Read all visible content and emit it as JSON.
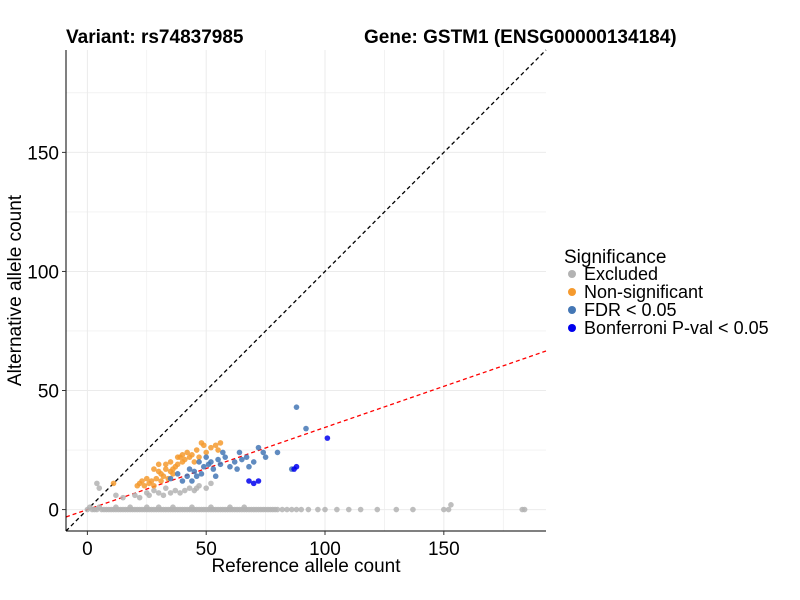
{
  "chart_data": {
    "type": "scatter",
    "title_left": "Variant: rs74837985",
    "title_right": "Gene: GSTM1 (ENSG00000134184)",
    "xlabel": "Reference allele count",
    "ylabel": "Alternative allele count",
    "xlim": [
      -9,
      193
    ],
    "ylim": [
      -9,
      193
    ],
    "x_ticks": [
      0,
      50,
      100,
      150
    ],
    "y_ticks": [
      0,
      50,
      100,
      150
    ],
    "grid": true,
    "legend_position": "right",
    "legend_title": "Significance",
    "reference_lines": [
      {
        "name": "y = x",
        "slope": 1,
        "intercept": 0,
        "color": "#000000",
        "dash": "dashed"
      },
      {
        "name": "fitted",
        "slope": 0.345,
        "intercept": 0,
        "color": "#ff0000",
        "dash": "dashed"
      }
    ],
    "series": [
      {
        "name": "Excluded",
        "color": "#b3b3b3",
        "points": [
          [
            0,
            0
          ],
          [
            1,
            1
          ],
          [
            2,
            0
          ],
          [
            3,
            0
          ],
          [
            4,
            0
          ],
          [
            5,
            1
          ],
          [
            6,
            0
          ],
          [
            7,
            0
          ],
          [
            8,
            0
          ],
          [
            9,
            0
          ],
          [
            10,
            0
          ],
          [
            11,
            0
          ],
          [
            12,
            0
          ],
          [
            13,
            0
          ],
          [
            14,
            0
          ],
          [
            15,
            0
          ],
          [
            16,
            0
          ],
          [
            17,
            0
          ],
          [
            18,
            0
          ],
          [
            19,
            0
          ],
          [
            20,
            0
          ],
          [
            21,
            0
          ],
          [
            22,
            0
          ],
          [
            23,
            0
          ],
          [
            24,
            0
          ],
          [
            25,
            0
          ],
          [
            26,
            0
          ],
          [
            27,
            0
          ],
          [
            28,
            0
          ],
          [
            29,
            0
          ],
          [
            30,
            0
          ],
          [
            31,
            0
          ],
          [
            32,
            0
          ],
          [
            33,
            0
          ],
          [
            34,
            0
          ],
          [
            35,
            0
          ],
          [
            36,
            0
          ],
          [
            37,
            0
          ],
          [
            38,
            0
          ],
          [
            39,
            0
          ],
          [
            40,
            0
          ],
          [
            41,
            0
          ],
          [
            42,
            0
          ],
          [
            43,
            0
          ],
          [
            44,
            0
          ],
          [
            45,
            0
          ],
          [
            46,
            0
          ],
          [
            47,
            0
          ],
          [
            48,
            0
          ],
          [
            49,
            0
          ],
          [
            50,
            0
          ],
          [
            51,
            0
          ],
          [
            52,
            0
          ],
          [
            53,
            0
          ],
          [
            54,
            0
          ],
          [
            55,
            0
          ],
          [
            56,
            0
          ],
          [
            57,
            0
          ],
          [
            58,
            0
          ],
          [
            59,
            0
          ],
          [
            60,
            0
          ],
          [
            61,
            0
          ],
          [
            62,
            0
          ],
          [
            63,
            0
          ],
          [
            64,
            0
          ],
          [
            65,
            0
          ],
          [
            66,
            0
          ],
          [
            67,
            0
          ],
          [
            68,
            0
          ],
          [
            69,
            0
          ],
          [
            70,
            0
          ],
          [
            71,
            0
          ],
          [
            72,
            0
          ],
          [
            73,
            0
          ],
          [
            74,
            0
          ],
          [
            75,
            0
          ],
          [
            76,
            0
          ],
          [
            77,
            0
          ],
          [
            78,
            0
          ],
          [
            79,
            0
          ],
          [
            80,
            0
          ],
          [
            82,
            0
          ],
          [
            84,
            0
          ],
          [
            86,
            0
          ],
          [
            88,
            0
          ],
          [
            90,
            0
          ],
          [
            93,
            0
          ],
          [
            97,
            0
          ],
          [
            100,
            0
          ],
          [
            105,
            0
          ],
          [
            110,
            0
          ],
          [
            115,
            0
          ],
          [
            122,
            0
          ],
          [
            130,
            0
          ],
          [
            137,
            0
          ],
          [
            150,
            0
          ],
          [
            152,
            0
          ],
          [
            153,
            2
          ],
          [
            183,
            0
          ],
          [
            184,
            0
          ],
          [
            12,
            1
          ],
          [
            18,
            1
          ],
          [
            25,
            1
          ],
          [
            30,
            1
          ],
          [
            36,
            1
          ],
          [
            44,
            1
          ],
          [
            52,
            1
          ],
          [
            60,
            1
          ],
          [
            66,
            1
          ],
          [
            4,
            11
          ],
          [
            5,
            9
          ],
          [
            12,
            6
          ],
          [
            15,
            5
          ],
          [
            20,
            6
          ],
          [
            22,
            5
          ],
          [
            25,
            7
          ],
          [
            26,
            6
          ],
          [
            28,
            8
          ],
          [
            30,
            7
          ],
          [
            32,
            6
          ],
          [
            33,
            9
          ],
          [
            35,
            7
          ],
          [
            37,
            8
          ],
          [
            39,
            7
          ],
          [
            41,
            8
          ],
          [
            43,
            9
          ],
          [
            45,
            8
          ],
          [
            46,
            9
          ],
          [
            47,
            10
          ],
          [
            50,
            9
          ],
          [
            52,
            11
          ]
        ]
      },
      {
        "name": "Non-significant",
        "color": "#f59a2e",
        "points": [
          [
            11,
            11
          ],
          [
            21,
            10
          ],
          [
            22,
            11
          ],
          [
            23,
            12
          ],
          [
            24,
            10
          ],
          [
            25,
            13
          ],
          [
            26,
            11
          ],
          [
            27,
            12
          ],
          [
            28,
            10
          ],
          [
            29,
            13
          ],
          [
            30,
            16
          ],
          [
            31,
            12
          ],
          [
            31,
            15
          ],
          [
            32,
            14
          ],
          [
            33,
            17
          ],
          [
            33,
            19
          ],
          [
            34,
            13
          ],
          [
            35,
            16
          ],
          [
            35,
            20
          ],
          [
            36,
            15
          ],
          [
            37,
            18
          ],
          [
            38,
            19
          ],
          [
            39,
            22
          ],
          [
            40,
            20
          ],
          [
            41,
            21
          ],
          [
            42,
            24
          ],
          [
            43,
            22
          ],
          [
            44,
            23
          ],
          [
            45,
            20
          ],
          [
            46,
            25
          ],
          [
            47,
            22
          ],
          [
            48,
            28
          ],
          [
            49,
            27
          ],
          [
            50,
            24
          ],
          [
            52,
            26
          ],
          [
            54,
            27
          ],
          [
            55,
            25
          ],
          [
            56,
            28
          ],
          [
            36,
            17
          ],
          [
            38,
            22
          ],
          [
            40,
            23
          ],
          [
            30,
            19
          ],
          [
            28,
            17
          ]
        ]
      },
      {
        "name": "FDR < 0.05",
        "color": "#4477b5",
        "points": [
          [
            35,
            13
          ],
          [
            38,
            15
          ],
          [
            40,
            12
          ],
          [
            42,
            14
          ],
          [
            43,
            17
          ],
          [
            44,
            12
          ],
          [
            45,
            16
          ],
          [
            46,
            14
          ],
          [
            47,
            20
          ],
          [
            48,
            15
          ],
          [
            49,
            18
          ],
          [
            50,
            22
          ],
          [
            51,
            19
          ],
          [
            52,
            20
          ],
          [
            53,
            17
          ],
          [
            54,
            14
          ],
          [
            55,
            21
          ],
          [
            56,
            19
          ],
          [
            58,
            22
          ],
          [
            60,
            18
          ],
          [
            62,
            20
          ],
          [
            64,
            24
          ],
          [
            65,
            21
          ],
          [
            67,
            22
          ],
          [
            68,
            18
          ],
          [
            70,
            20
          ],
          [
            72,
            26
          ],
          [
            74,
            24
          ],
          [
            75,
            22
          ],
          [
            80,
            24
          ],
          [
            88,
            43
          ],
          [
            92,
            34
          ],
          [
            86,
            17
          ],
          [
            57,
            24
          ],
          [
            63,
            17
          ]
        ]
      },
      {
        "name": "Bonferroni P-val < 0.05",
        "color": "#0000ee",
        "points": [
          [
            68,
            12
          ],
          [
            70,
            11
          ],
          [
            72,
            12
          ],
          [
            88,
            18
          ],
          [
            87,
            17
          ],
          [
            101,
            30
          ]
        ]
      }
    ]
  }
}
